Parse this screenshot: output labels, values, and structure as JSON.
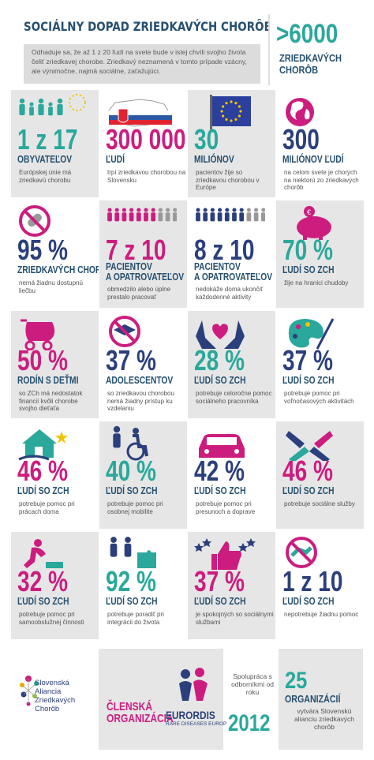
{
  "header": {
    "title": "SOCIÁLNY DOPAD ZRIEDKAVÝCH CHORÔB",
    "intro": "Odhaduje sa, že až 1 z 20 ľudí na svete bude v istej chvíli svojho života čeliť zriedkavej chorobe. Zriedkavý neznamená v tomto prípade vzácny, ale výnimočne, najmä sociálne, zaťažujúci.",
    "big_number": ">6000",
    "big_label": "ZRIEDKAVÝCH CHORÔB"
  },
  "rows": [
    [
      {
        "icon": "people-group-icon",
        "value": "1 z 17",
        "label": "OBYVATEĽOV",
        "desc": "Európskej únie má zriedkavú chorobu",
        "color": "#2aa89b",
        "bg": "gray"
      },
      {
        "icon": "slovakia-map-icon",
        "value": "300 000",
        "label": "ĽUDÍ",
        "desc": "trpí zriedkavou chorobou na Slovensku",
        "color": "#cc1d7f",
        "bg": "white"
      },
      {
        "icon": "eu-flag-icon",
        "value": "30",
        "label": "MILIÓNOV",
        "desc": "pacientov žije so zriedkavou chorobou v Európe",
        "color": "#2aa89b",
        "bg": "gray"
      },
      {
        "icon": "globe-icon",
        "value": "300",
        "label": "MILIÓNOV ĽUDÍ",
        "desc": "na celom svete je chorých na niektorú zo zriedkavých chorôb",
        "color": "#2b3f7c",
        "bg": "white"
      }
    ],
    [
      {
        "icon": "no-pill-icon",
        "value": "95 %",
        "label": "ZRIEDKAVÝCH CHORÔB",
        "desc": "nemá žiadnu dostupnú liečbu",
        "color": "#2b3f7c",
        "bg": "white"
      },
      {
        "icon": "people-row-icon",
        "value": "7 z 10",
        "label": "PACIENTOV A OPATROVATEĽOV",
        "desc": "obmedzilo alebo úplne prestalo pracovať",
        "color": "#cc1d7f",
        "bg": "gray"
      },
      {
        "icon": "people-row-icon",
        "value": "8 z 10",
        "label": "PACIENTOV A OPATROVATEĽOV",
        "desc": "nedokáže doma ukončiť každodenné aktivity",
        "color": "#2b3f7c",
        "bg": "white"
      },
      {
        "icon": "piggy-bank-icon",
        "value": "70 %",
        "label": "ĽUDÍ SO ZCH",
        "desc": "žije na hranici chudoby",
        "color": "#2aa89b",
        "bg": "gray"
      }
    ],
    [
      {
        "icon": "stroller-icon",
        "value": "50 %",
        "label": "RODÍN S DEŤMI",
        "desc": "so ZCh má nedostatok financií kvôli chorobe svojho dieťaťa",
        "color": "#cc1d7f",
        "bg": "gray"
      },
      {
        "icon": "no-graduation-icon",
        "value": "37 %",
        "label": "ADOLESCENTOV",
        "desc": "so zriedkavou chorobou nemá žiadny prístup ku vzdelaniu",
        "color": "#2b3f7c",
        "bg": "white"
      },
      {
        "icon": "hands-heart-icon",
        "value": "28 %",
        "label": "ĽUDÍ SO ZCH",
        "desc": "potrebuje celoročne pomoc sociálneho pracovníka",
        "color": "#2aa89b",
        "bg": "gray"
      },
      {
        "icon": "palette-icon",
        "value": "37 %",
        "label": "ĽUDÍ SO ZCH",
        "desc": "potrebuje pomoc pri voľnočasových aktivitách",
        "color": "#2b3f7c",
        "bg": "white"
      }
    ],
    [
      {
        "icon": "house-icon",
        "value": "46 %",
        "label": "ĽUDÍ SO ZCH",
        "desc": "potrebuje pomoc pri prácach doma",
        "color": "#cc1d7f",
        "bg": "white"
      },
      {
        "icon": "wheelchair-icon",
        "value": "40 %",
        "label": "ĽUDÍ SO ZCH",
        "desc": "potrebuje pomoc pri osobnej mobilite",
        "color": "#2aa89b",
        "bg": "gray"
      },
      {
        "icon": "car-icon",
        "value": "42 %",
        "label": "ĽUDÍ SO ZCH",
        "desc": "potrebuje pomoc pri presunoch a doprave",
        "color": "#2b3f7c",
        "bg": "white"
      },
      {
        "icon": "joined-hands-icon",
        "value": "46 %",
        "label": "ĽUDÍ SO ZCH",
        "desc": "potrebuje sociálne služby",
        "color": "#cc1d7f",
        "bg": "gray"
      }
    ],
    [
      {
        "icon": "self-care-icon",
        "value": "32 %",
        "label": "ĽUDÍ SO ZCH",
        "desc": "potrebuje pomoc pri samoobslužnej činnosti",
        "color": "#cc1d7f",
        "bg": "gray"
      },
      {
        "icon": "puzzle-people-icon",
        "value": "92 %",
        "label": "ĽUDÍ SO ZCH",
        "desc": "potrebuje poradiť pri integrácii do života",
        "color": "#2aa89b",
        "bg": "white"
      },
      {
        "icon": "thumbs-up-stars-icon",
        "value": "37 %",
        "label": "ĽUDÍ SO ZCH",
        "desc": "je spokojných so sociálnymi službami",
        "color": "#cc1d7f",
        "bg": "gray"
      },
      {
        "icon": "no-help-icon",
        "value": "1 z 10",
        "label": "ĽUDÍ SO ZCH",
        "desc": "nepotrebuje žiadnu pomoc",
        "color": "#2b3f7c",
        "bg": "white"
      }
    ]
  ],
  "footer": {
    "sak_name": "Slovenská Aliancia Zriedkavých Chorôb",
    "member_label": "ČLENSKÁ ORGANIZÁCIA",
    "eurordis": "EURORDIS",
    "eurordis_sub": "RARE DISEASES EUROPE",
    "coop_text": "Spolupráca s odborníkmi od roku",
    "coop_year": "2012",
    "org_count": "25",
    "org_label": "ORGANIZÁCIÍ",
    "org_desc": "vytvára Slovenskú alianciu zriedkavých chorôb"
  }
}
